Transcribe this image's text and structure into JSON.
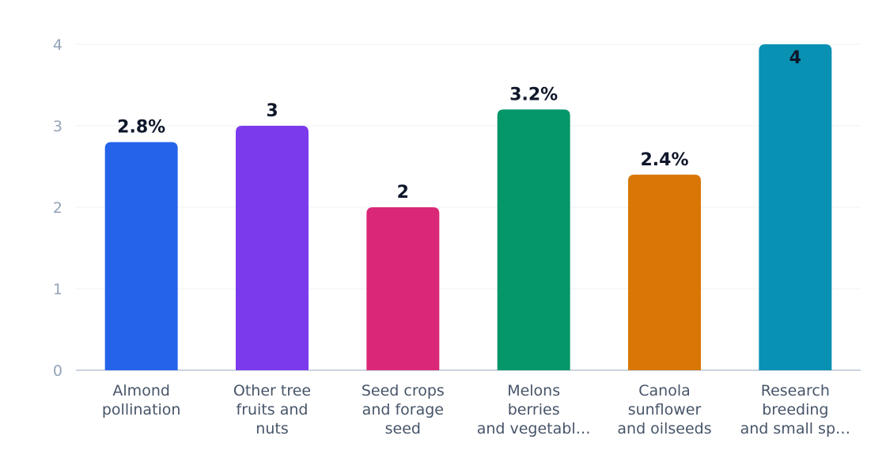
{
  "chart_data": {
    "type": "bar",
    "categories": [
      [
        "Almond",
        "pollination"
      ],
      [
        "Other tree",
        "fruits and",
        "nuts"
      ],
      [
        "Seed crops",
        "and forage",
        "seed"
      ],
      [
        "Melons",
        "berries",
        "and vegetabl…"
      ],
      [
        "Canola",
        "sunflower",
        "and oilseeds"
      ],
      [
        "Research",
        "breeding",
        "and small sp…"
      ]
    ],
    "values": [
      2.8,
      3,
      2,
      3.2,
      2.4,
      4
    ],
    "data_labels": [
      "2.8%",
      "3",
      "2",
      "3.2%",
      "2.4%",
      "4"
    ],
    "colors": [
      "#2563eb",
      "#7c3aed",
      "#db2777",
      "#059669",
      "#d97706",
      "#0891b2"
    ],
    "ylim": [
      0,
      4
    ],
    "yticks": [
      "0",
      "1",
      "2",
      "3",
      "4"
    ],
    "grid": true,
    "title": "",
    "xlabel": "",
    "ylabel": ""
  }
}
